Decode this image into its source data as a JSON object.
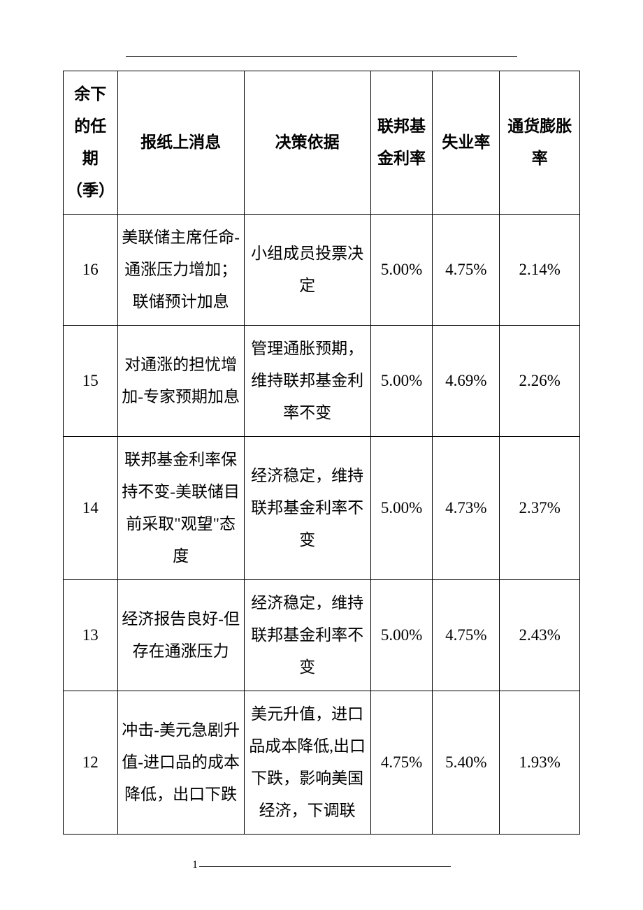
{
  "table": {
    "columns": [
      "余下的任期（季）",
      "报纸上消息",
      "决策依据",
      "联邦基金利率",
      "失业率",
      "通货膨胀率"
    ],
    "rows": [
      {
        "term": "16",
        "news": "美联储主席任命-通涨压力增加；联储预计加息",
        "basis": "小组成员投票决定",
        "rate": "5.00%",
        "unemployment": "4.75%",
        "inflation": "2.14%"
      },
      {
        "term": "15",
        "news": "对通涨的担忧增加-专家预期加息",
        "basis": "管理通胀预期，维持联邦基金利率不变",
        "rate": "5.00%",
        "unemployment": "4.69%",
        "inflation": "2.26%"
      },
      {
        "term": "14",
        "news": "联邦基金利率保持不变-美联储目前采取\"观望\"态度",
        "basis": "经济稳定，维持联邦基金利率不变",
        "rate": "5.00%",
        "unemployment": "4.73%",
        "inflation": "2.37%"
      },
      {
        "term": "13",
        "news": "经济报告良好-但存在通涨压力",
        "basis": "经济稳定，维持联邦基金利率不变",
        "rate": "5.00%",
        "unemployment": "4.75%",
        "inflation": "2.43%"
      },
      {
        "term": "12",
        "news": "冲击-美元急剧升值-进口品的成本降低，出口下跌",
        "basis": "美元升值，进口品成本降低,出口下跌，影响美国经济，下调联",
        "rate": "4.75%",
        "unemployment": "5.40%",
        "inflation": "1.93%"
      }
    ],
    "styling": {
      "border_color": "#000000",
      "border_width": 1.5,
      "font_family": "SimSun",
      "header_font_weight": "bold",
      "cell_font_size": 23,
      "line_height": 2.0,
      "text_align": "center",
      "background_color": "#ffffff",
      "column_widths_pct": [
        10.5,
        24.5,
        24.5,
        12,
        13,
        15.5
      ]
    }
  },
  "page_number": "1"
}
